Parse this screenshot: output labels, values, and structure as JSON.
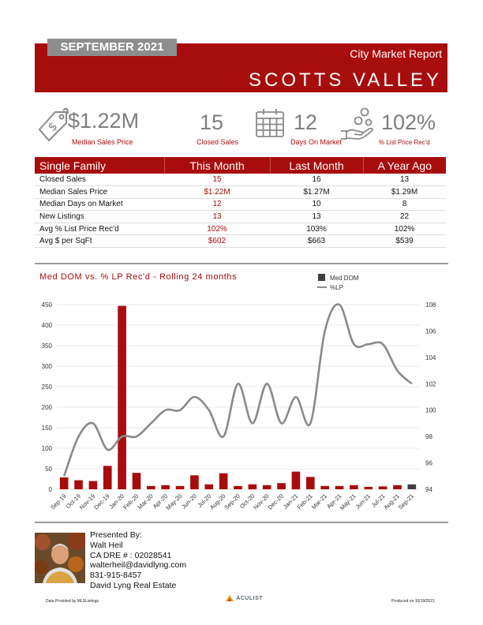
{
  "header": {
    "month": "SEPTEMBER 2021",
    "report_title": "City Market Report",
    "city": "SCOTTS VALLEY"
  },
  "stats": [
    {
      "value": "$1.22M",
      "label": "Median Sales Price",
      "icon": "price-tag-icon"
    },
    {
      "value": "15",
      "label": "Closed Sales",
      "icon": ""
    },
    {
      "value": "12",
      "label": "Days On Market",
      "icon": "calendar-icon"
    },
    {
      "value": "102%",
      "label": "% List Price Rec'd",
      "icon": "hand-coins-icon"
    }
  ],
  "table": {
    "headers": [
      "Single Family",
      "This Month",
      "Last Month",
      "A Year Ago"
    ],
    "rows": [
      [
        "Closed Sales",
        "15",
        "16",
        "13"
      ],
      [
        "Median Sales Price",
        "$1.22M",
        "$1.27M",
        "$1.29M"
      ],
      [
        "Median Days on Market",
        "12",
        "10",
        "8"
      ],
      [
        "New Listings",
        "13",
        "13",
        "22"
      ],
      [
        "Avg % List Price Rec'd",
        "102%",
        "103%",
        "102%"
      ],
      [
        "Avg $ per SqFt",
        "$602",
        "$663",
        "$539"
      ]
    ]
  },
  "chart_data": {
    "type": "bar",
    "title": "Med DOM vs. % LP Rec'd - Rolling 24 months",
    "categories": [
      "Sep-19",
      "Oct-19",
      "Nov-19",
      "Dec-19",
      "Jan-20",
      "Feb-20",
      "Mar-20",
      "Apr-20",
      "May-20",
      "Jun-20",
      "Jul-20",
      "Aug-20",
      "Sep-20",
      "Oct-20",
      "Nov-20",
      "Dec-20",
      "Jan-21",
      "Feb-21",
      "Mar-21",
      "Apr-21",
      "May-21",
      "Jun-21",
      "Jul-21",
      "Aug-21",
      "Sep-21"
    ],
    "series": [
      {
        "name": "Med DOM",
        "type": "bar",
        "axis": "left",
        "values": [
          29,
          22,
          20,
          57,
          447,
          40,
          8,
          10,
          8,
          34,
          12,
          39,
          8,
          12,
          10,
          15,
          43,
          30,
          8,
          8,
          10,
          6,
          7,
          10,
          12
        ]
      },
      {
        "name": "%LP",
        "type": "line",
        "axis": "right",
        "values": [
          95.0,
          98.0,
          99.0,
          97.0,
          98.0,
          98.0,
          99.0,
          100.0,
          100.0,
          101.0,
          100.0,
          98.0,
          102.0,
          99.0,
          102.0,
          99.0,
          101.0,
          99.0,
          106.0,
          108.0,
          105.0,
          105.0,
          105.0,
          103.0,
          102.0
        ]
      }
    ],
    "ylim_left": [
      0,
      450
    ],
    "yticks_left": [
      0,
      50,
      100,
      150,
      200,
      250,
      300,
      350,
      400,
      450
    ],
    "ylim_right": [
      94,
      108
    ],
    "yticks_right": [
      94,
      96,
      98,
      100,
      102,
      104,
      106,
      108
    ],
    "legend_position": "top-right",
    "grid": true,
    "colors": {
      "bar": "#a80d0d",
      "bar_latest": "#3f3f3f",
      "line": "#8a8a8a"
    }
  },
  "agent": {
    "presented_by": "Presented By:",
    "name": "Walt Heil",
    "dre": "CA DRE # : 02028541",
    "email": "walterheil@davidlyng.com",
    "phone": "831-915-8457",
    "company": "David Lyng Real Estate"
  },
  "footer": {
    "left": "Data Provided by MLSListings",
    "brand": "ACULIST",
    "right": "Produced on 10/19/2021"
  },
  "colors": {
    "accent": "#a80d0d",
    "tab": "#8d8d8d"
  }
}
